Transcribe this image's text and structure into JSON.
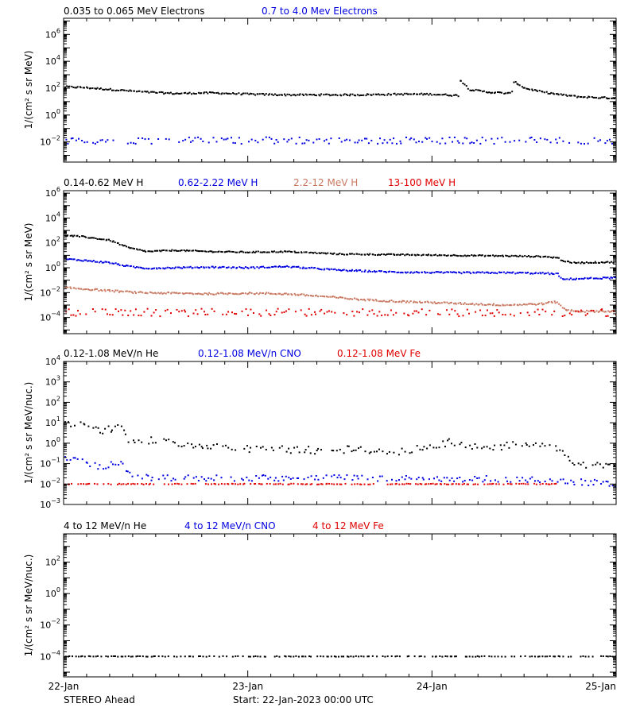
{
  "figure": {
    "footer_left": "STEREO Ahead",
    "footer_start": "Start: 22-Jan-2023 00:00 UTC",
    "x_ticks": [
      "22-Jan",
      "23-Jan",
      "24-Jan",
      "25-Jan"
    ],
    "x_range_days": [
      0,
      3
    ]
  },
  "chart_data": [
    {
      "type": "scatter",
      "ylabel": "1/(cm² s sr MeV)",
      "ylog": true,
      "ylim_exp": [
        -3.5,
        7.2
      ],
      "y_ticks_exp": [
        -2,
        0,
        2,
        4,
        6
      ],
      "legend": [
        {
          "label": "0.035 to 0.065 MeV Electrons",
          "color": "#000000"
        },
        {
          "label": "0.7 to 4.0 Mev Electrons",
          "color": "#0000e0"
        }
      ],
      "series": [
        {
          "name": "0.035 to 0.065 MeV Electrons",
          "color": "#000000",
          "style": "dense",
          "x": [
            0,
            0.1,
            0.2,
            0.3,
            0.45,
            0.6,
            0.8,
            1.0,
            1.2,
            1.4,
            1.6,
            1.8,
            2.0,
            2.14,
            2.15,
            2.2,
            2.3,
            2.43,
            2.44,
            2.5,
            2.6,
            2.7,
            2.8,
            3.0
          ],
          "y_exp": [
            2.1,
            2.05,
            1.95,
            1.85,
            1.7,
            1.6,
            1.65,
            1.55,
            1.5,
            1.5,
            1.5,
            1.55,
            1.55,
            1.45,
            2.6,
            1.9,
            1.7,
            1.6,
            2.5,
            2.0,
            1.7,
            1.5,
            1.35,
            1.25
          ],
          "jitter": 0.06
        },
        {
          "name": "0.7 to 4.0 Mev Electrons",
          "color": "#0000e0",
          "style": "sparse",
          "x": [
            0,
            3
          ],
          "y_exp": [
            -1.9,
            -1.9
          ],
          "jitter": 0.25
        }
      ]
    },
    {
      "type": "scatter",
      "ylabel": "1/(cm² s sr MeV)",
      "ylog": true,
      "ylim_exp": [
        -5.3,
        6.2
      ],
      "y_ticks_exp": [
        -4,
        -2,
        0,
        2,
        4,
        6
      ],
      "legend": [
        {
          "label": "0.14-0.62 MeV H",
          "color": "#000000"
        },
        {
          "label": "0.62-2.22 MeV H",
          "color": "#0000e0"
        },
        {
          "label": "2.2-12 MeV H",
          "color": "#c87860"
        },
        {
          "label": "13-100 MeV H",
          "color": "#e00000"
        }
      ],
      "series": [
        {
          "name": "0.14-0.62 MeV H",
          "color": "#000000",
          "style": "dense",
          "x": [
            0,
            0.1,
            0.25,
            0.35,
            0.45,
            0.6,
            0.8,
            1.0,
            1.2,
            1.5,
            1.8,
            2.1,
            2.4,
            2.6,
            2.68,
            2.7,
            2.75,
            3.0
          ],
          "y_exp": [
            2.6,
            2.5,
            2.2,
            1.6,
            1.3,
            1.4,
            1.3,
            1.25,
            1.3,
            1.1,
            1.05,
            1.0,
            0.95,
            0.9,
            0.8,
            0.6,
            0.4,
            0.45
          ],
          "jitter": 0.05
        },
        {
          "name": "0.62-2.22 MeV H",
          "color": "#0000e0",
          "style": "dense",
          "x": [
            0,
            0.1,
            0.25,
            0.35,
            0.45,
            0.6,
            0.8,
            1.0,
            1.2,
            1.5,
            1.8,
            2.1,
            2.4,
            2.6,
            2.68,
            2.7,
            2.75,
            3.0
          ],
          "y_exp": [
            0.7,
            0.6,
            0.4,
            0.1,
            -0.05,
            0.0,
            0.05,
            0.0,
            0.1,
            -0.2,
            -0.35,
            -0.4,
            -0.4,
            -0.45,
            -0.5,
            -0.95,
            -0.9,
            -0.8
          ],
          "jitter": 0.06
        },
        {
          "name": "2.2-12 MeV H",
          "color": "#c87860",
          "style": "dense",
          "x": [
            0,
            0.2,
            0.4,
            0.6,
            0.8,
            1.0,
            1.2,
            1.4,
            1.6,
            1.8,
            2.0,
            2.2,
            2.4,
            2.6,
            2.65,
            2.68,
            2.72,
            2.8,
            3.0
          ],
          "y_exp": [
            -1.6,
            -1.8,
            -2.0,
            -2.05,
            -2.1,
            -2.05,
            -2.1,
            -2.3,
            -2.55,
            -2.7,
            -2.8,
            -2.9,
            -3.0,
            -2.9,
            -2.75,
            -2.8,
            -3.4,
            -3.5,
            -3.5
          ],
          "jitter": 0.07
        },
        {
          "name": "13-100 MeV H",
          "color": "#e00000",
          "style": "sparse",
          "x": [
            0,
            3
          ],
          "y_exp": [
            -3.6,
            -3.6
          ],
          "jitter": 0.3
        }
      ]
    },
    {
      "type": "scatter",
      "ylabel": "1/(cm² s sr MeV/nuc.)",
      "ylog": true,
      "ylim_exp": [
        -3,
        4
      ],
      "y_ticks_exp": [
        -3,
        -2,
        -1,
        0,
        1,
        2,
        3,
        4
      ],
      "legend": [
        {
          "label": "0.12-1.08 MeV/n He",
          "color": "#000000"
        },
        {
          "label": "0.12-1.08 MeV/n CNO",
          "color": "#0000e0"
        },
        {
          "label": "0.12-1.08 MeV Fe",
          "color": "#e00000"
        }
      ],
      "series": [
        {
          "name": "0.12-1.08 MeV/n He",
          "color": "#000000",
          "style": "sparse",
          "x": [
            0,
            0.05,
            0.2,
            0.3,
            0.35,
            0.45,
            0.6,
            0.8,
            1.0,
            1.2,
            1.4,
            1.6,
            1.8,
            2.0,
            2.1,
            2.3,
            2.4,
            2.6,
            2.7,
            2.75,
            3.0
          ],
          "y_exp": [
            0.85,
            1.0,
            0.6,
            0.8,
            0.2,
            0.15,
            0.0,
            -0.1,
            -0.3,
            -0.3,
            -0.35,
            -0.3,
            -0.4,
            -0.2,
            0.1,
            -0.3,
            -0.1,
            0.0,
            -0.35,
            -1.0,
            -1.1
          ],
          "jitter": 0.18
        },
        {
          "name": "0.12-1.08 MeV/n CNO",
          "color": "#0000e0",
          "style": "sparse",
          "x": [
            0,
            0.1,
            0.2,
            0.3,
            0.38,
            0.5,
            1.0,
            1.5,
            2.0,
            2.5,
            3.0
          ],
          "y_exp": [
            -0.8,
            -0.9,
            -1.2,
            -0.9,
            -1.6,
            -1.7,
            -1.7,
            -1.7,
            -1.75,
            -1.75,
            -2.0
          ],
          "jitter": 0.15
        },
        {
          "name": "0.12-1.08 MeV Fe",
          "color": "#e00000",
          "style": "sparse",
          "x": [
            0,
            2.68
          ],
          "y_exp": [
            -2.0,
            -2.0
          ],
          "jitter": 0.02
        }
      ]
    },
    {
      "type": "scatter",
      "ylabel": "1/(cm² s sr MeV/nuc.)",
      "ylog": true,
      "ylim_exp": [
        -5.3,
        3.8
      ],
      "y_ticks_exp": [
        -4,
        -2,
        0,
        2
      ],
      "legend": [
        {
          "label": "4 to 12 MeV/n He",
          "color": "#000000"
        },
        {
          "label": "4 to 12 MeV/n CNO",
          "color": "#0000e0"
        },
        {
          "label": "4 to 12 MeV Fe",
          "color": "#e00000"
        }
      ],
      "series": [
        {
          "name": "4 to 12 MeV/n He",
          "color": "#000000",
          "style": "sparse",
          "x": [
            0,
            3
          ],
          "y_exp": [
            -4.0,
            -4.0
          ],
          "jitter": 0.02
        }
      ]
    }
  ]
}
